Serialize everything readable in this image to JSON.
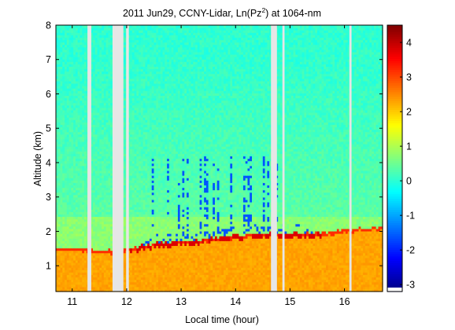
{
  "chart_data": {
    "type": "heatmap",
    "title": {
      "prefix": "2011 Jun29, CCNY-Lidar, Ln(Pz",
      "superscript": "2",
      "suffix": ") at 1064-nm"
    },
    "xlabel": "Local time (hour)",
    "ylabel": "Altitude (km)",
    "xlim": [
      10.7,
      16.7
    ],
    "ylim": [
      0.25,
      8.0
    ],
    "xticks": [
      11,
      12,
      13,
      14,
      15,
      16
    ],
    "yticks": [
      1,
      2,
      3,
      4,
      5,
      6,
      7,
      8
    ],
    "colorbar": {
      "range": [
        -3.2,
        4.5
      ],
      "ticks": [
        -3,
        -2,
        -1,
        0,
        1,
        2,
        3,
        4
      ],
      "colormap": "jet"
    },
    "missing_data_color": "#e6e6e6",
    "data_gaps_hours": [
      [
        11.28,
        11.35
      ],
      [
        11.74,
        11.94
      ],
      [
        11.99,
        12.04
      ],
      [
        14.65,
        14.76
      ],
      [
        14.86,
        14.9
      ],
      [
        16.09,
        16.13
      ]
    ],
    "layers": {
      "boundary_layer_value": 2.3,
      "aerosol_top_value": 3.8,
      "free_troposphere_value": 0.4,
      "upper_noise_value": 0.05,
      "cloud_streak_value": -1.6
    },
    "boundary_layer_top_km": [
      [
        10.7,
        1.55
      ],
      [
        11.0,
        1.52
      ],
      [
        11.3,
        1.5
      ],
      [
        11.6,
        1.47
      ],
      [
        11.9,
        1.43
      ],
      [
        12.05,
        1.5
      ],
      [
        12.3,
        1.62
      ],
      [
        12.6,
        1.68
      ],
      [
        13.0,
        1.73
      ],
      [
        13.5,
        1.8
      ],
      [
        14.0,
        1.88
      ],
      [
        14.5,
        1.95
      ],
      [
        15.0,
        1.97
      ],
      [
        15.5,
        1.96
      ],
      [
        16.0,
        2.05
      ],
      [
        16.3,
        2.12
      ],
      [
        16.7,
        2.12
      ]
    ]
  }
}
